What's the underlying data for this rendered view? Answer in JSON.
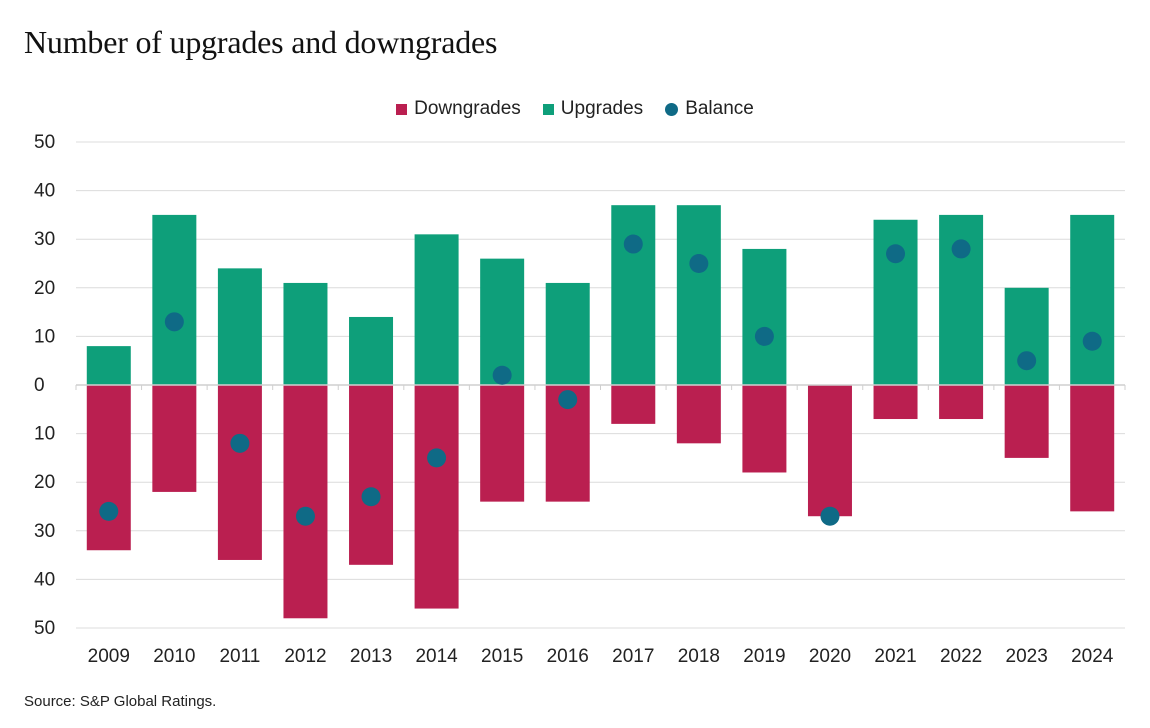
{
  "title": "Number of upgrades and downgrades",
  "source": "Source: S&P Global Ratings.",
  "legend": [
    {
      "label": "Downgrades",
      "shape": "square",
      "color": "#BA1F50"
    },
    {
      "label": "Upgrades",
      "shape": "square",
      "color": "#0E9F7A"
    },
    {
      "label": "Balance",
      "shape": "circle",
      "color": "#0F6A86"
    }
  ],
  "chart_data": {
    "type": "bar",
    "title": "Number of upgrades and downgrades",
    "stacked_diverging": true,
    "categories": [
      "2009",
      "2010",
      "2011",
      "2012",
      "2013",
      "2014",
      "2015",
      "2016",
      "2017",
      "2018",
      "2019",
      "2020",
      "2021",
      "2022",
      "2023",
      "2024"
    ],
    "series": [
      {
        "name": "Downgrades",
        "type": "bar",
        "color": "#BA1F50",
        "values": [
          34,
          22,
          36,
          48,
          37,
          46,
          24,
          24,
          8,
          12,
          18,
          27,
          7,
          7,
          15,
          26
        ]
      },
      {
        "name": "Upgrades",
        "type": "bar",
        "color": "#0E9F7A",
        "values": [
          8,
          35,
          24,
          21,
          14,
          31,
          26,
          21,
          37,
          37,
          28,
          0,
          34,
          35,
          20,
          35
        ]
      },
      {
        "name": "Balance",
        "type": "scatter",
        "color": "#0F6A86",
        "values": [
          -26,
          13,
          -12,
          -27,
          -23,
          -15,
          2,
          -3,
          29,
          25,
          10,
          -27,
          27,
          28,
          5,
          9
        ]
      }
    ],
    "ylim": [
      -50,
      50
    ],
    "yticks": [
      50,
      40,
      30,
      20,
      10,
      0,
      -10,
      -20,
      -30,
      -40,
      -50
    ],
    "ytick_labels": [
      "50",
      "40",
      "30",
      "20",
      "10",
      "0",
      "10",
      "20",
      "30",
      "40",
      "50"
    ],
    "grid": true,
    "legend_position": "top-center"
  }
}
